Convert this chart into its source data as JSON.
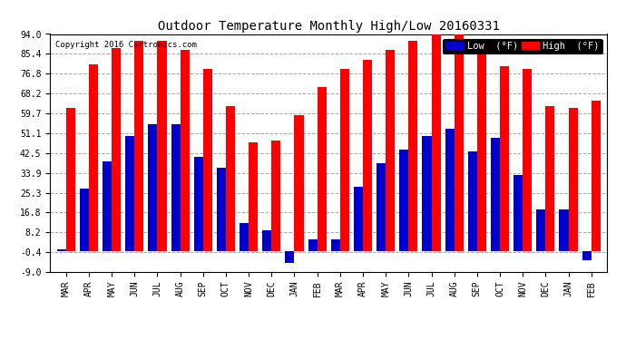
{
  "title": "Outdoor Temperature Monthly High/Low 20160331",
  "copyright": "Copyright 2016 Cartronics.com",
  "legend_low": "Low  (°F)",
  "legend_high": "High  (°F)",
  "months": [
    "MAR",
    "APR",
    "MAY",
    "JUN",
    "JUL",
    "AUG",
    "SEP",
    "OCT",
    "NOV",
    "DEC",
    "JAN",
    "FEB",
    "MAR",
    "APR",
    "MAY",
    "JUN",
    "JUL",
    "AUG",
    "SEP",
    "OCT",
    "NOV",
    "DEC",
    "JAN",
    "FEB"
  ],
  "high_values": [
    62,
    81,
    88,
    91,
    91,
    87,
    79,
    63,
    47,
    48,
    59,
    71,
    79,
    83,
    87,
    91,
    94,
    94,
    91,
    80,
    79,
    63,
    62,
    65
  ],
  "low_values": [
    1,
    27,
    39,
    50,
    55,
    55,
    41,
    36,
    12,
    9,
    -5,
    5,
    5,
    28,
    38,
    44,
    50,
    53,
    43,
    49,
    33,
    18,
    18,
    -4
  ],
  "ylim": [
    -9.0,
    94.0
  ],
  "yticks": [
    -9.0,
    -0.4,
    8.2,
    16.8,
    25.3,
    33.9,
    42.5,
    51.1,
    59.7,
    68.2,
    76.8,
    85.4,
    94.0
  ],
  "ytick_labels": [
    "-9.0",
    "-0.4",
    "8.2",
    "16.8",
    "25.3",
    "33.9",
    "42.5",
    "51.1",
    "59.7",
    "68.2",
    "76.8",
    "85.4",
    "94.0"
  ],
  "bar_width": 0.4,
  "color_high": "#FF0000",
  "color_low": "#0000CC",
  "bg_color": "#FFFFFF",
  "grid_color": "#AAAAAA",
  "title_fontsize": 10,
  "legend_fontsize": 7.5,
  "tick_fontsize": 7,
  "copyright_fontsize": 6.5
}
